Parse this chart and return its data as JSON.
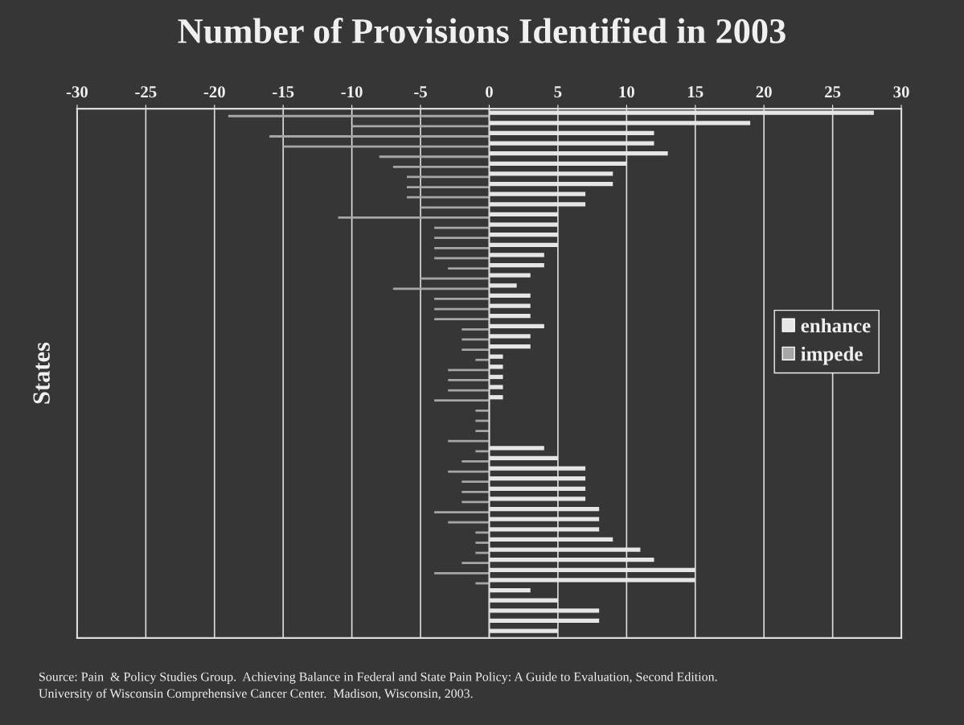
{
  "chart_data": {
    "type": "bar",
    "orientation": "horizontal",
    "title": "Number of Provisions Identified in 2003",
    "ylabel": "States",
    "categories": [
      null,
      null,
      null,
      null,
      null,
      null,
      null,
      null,
      null,
      null,
      null,
      null,
      null,
      null,
      null,
      null,
      null,
      null,
      null,
      null,
      null,
      null,
      null,
      null,
      null,
      null,
      null,
      null,
      null,
      null,
      null,
      null,
      null,
      null,
      null,
      null,
      null,
      null,
      null,
      null,
      null,
      null,
      null,
      null,
      null,
      null,
      null,
      null,
      null,
      null,
      null,
      null
    ],
    "series": [
      {
        "name": "enhance",
        "color": "#e6e6e6",
        "values": [
          28,
          19,
          12,
          12,
          13,
          10,
          9,
          9,
          7,
          7,
          5,
          5,
          5,
          5,
          4,
          4,
          3,
          2,
          3,
          3,
          3,
          4,
          3,
          3,
          1,
          1,
          1,
          1,
          1,
          0,
          0,
          0,
          0,
          4,
          5,
          7,
          7,
          7,
          7,
          8,
          8,
          8,
          9,
          11,
          12,
          15,
          15,
          3,
          5,
          8,
          8,
          5
        ]
      },
      {
        "name": "impede",
        "color": "#a6a6a6",
        "values": [
          -19,
          -10,
          -16,
          -15,
          -8,
          -7,
          -6,
          -6,
          -6,
          -5,
          -11,
          -4,
          -4,
          -4,
          -4,
          -3,
          -5,
          -7,
          -4,
          -4,
          -4,
          -2,
          -2,
          -2,
          -1,
          -3,
          -3,
          -3,
          -4,
          -1,
          -1,
          -1,
          -3,
          -1,
          -2,
          -3,
          -2,
          -2,
          -2,
          -4,
          -3,
          -1,
          -1,
          -1,
          -2,
          -4,
          -1,
          0,
          0,
          0,
          0,
          0
        ]
      }
    ],
    "xlim": [
      -30,
      30
    ],
    "xticks": [
      -30,
      -25,
      -20,
      -15,
      -10,
      -5,
      0,
      5,
      10,
      15,
      20,
      25,
      30
    ],
    "grid": "x",
    "legend": "right",
    "tick_labels": "x",
    "annotations": [
      "Source: Pain  & Policy Studies Group.  Achieving Balance in Federal and State Pain Policy: A Guide to Evaluation, Second Edition.",
      "University of Wisconsin Comprehensive Cancer Center.  Madison, Wisconsin, 2003."
    ]
  }
}
